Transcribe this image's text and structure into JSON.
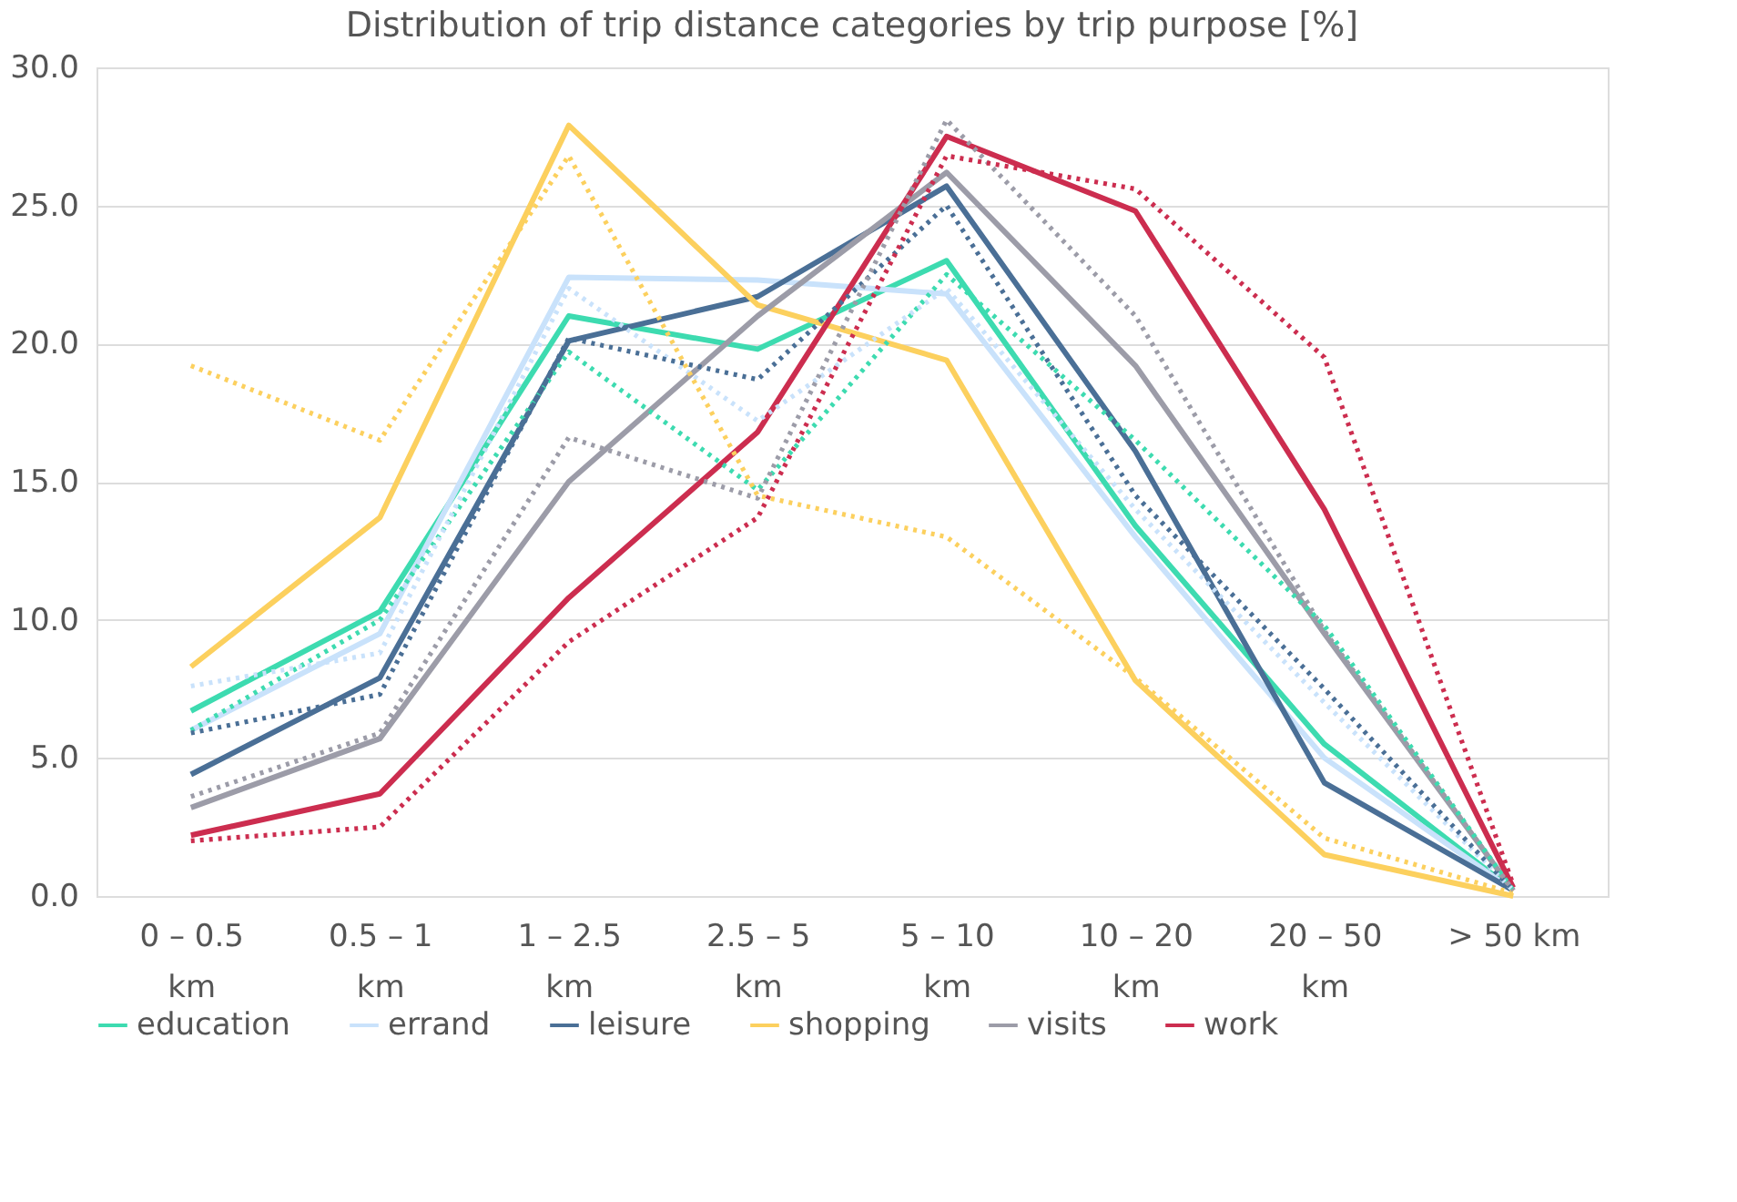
{
  "chart_data": {
    "type": "line",
    "title": "Distribution of trip distance categories by trip purpose [%]",
    "categories": [
      "0 – 0.5 km",
      "0.5 – 1 km",
      "1 – 2.5 km",
      "2.5 – 5 km",
      "5 – 10 km",
      "10 – 20 km",
      "20 – 50 km",
      "> 50 km"
    ],
    "ylim": [
      0,
      30
    ],
    "yticks": [
      {
        "value": 0,
        "label": "0.0"
      },
      {
        "value": 5,
        "label": "5.0"
      },
      {
        "value": 10,
        "label": "10.0"
      },
      {
        "value": 15,
        "label": "15.0"
      },
      {
        "value": 20,
        "label": "20.0"
      },
      {
        "value": 25,
        "label": "25.0"
      },
      {
        "value": 30,
        "label": "30.0"
      }
    ],
    "grid": "y",
    "legend": "bottom",
    "line_style": "solid",
    "marker": "none",
    "series": [
      {
        "name": "education",
        "color": "#3ddbb0",
        "values": [
          6.7,
          10.3,
          21.0,
          19.8,
          23.0,
          13.4,
          5.5,
          0.2
        ]
      },
      {
        "name": "errand",
        "color": "#c9e2fb",
        "values": [
          6.0,
          9.5,
          22.4,
          22.3,
          21.8,
          13.0,
          5.0,
          0.2
        ]
      },
      {
        "name": "leisure",
        "color": "#4a6f96",
        "values": [
          4.4,
          7.9,
          20.1,
          21.7,
          25.7,
          16.1,
          4.1,
          0.2
        ]
      },
      {
        "name": "shopping",
        "color": "#fcd05e",
        "values": [
          8.3,
          13.7,
          27.9,
          21.4,
          19.4,
          7.8,
          1.5,
          0.0
        ]
      },
      {
        "name": "visits",
        "color": "#9c9ca8",
        "values": [
          3.2,
          5.7,
          15.0,
          21.0,
          26.2,
          19.2,
          9.5,
          0.2
        ]
      },
      {
        "name": "work",
        "color": "#cc2d4f",
        "values": [
          2.2,
          3.7,
          10.8,
          16.8,
          27.5,
          24.8,
          14.0,
          0.3
        ]
      },
      {
        "color": "#3ddbb0",
        "line_style": "dotted",
        "values": [
          6.0,
          10.0,
          19.7,
          14.7,
          22.5,
          16.5,
          9.8,
          0.2
        ]
      },
      {
        "color": "#c9e2fb",
        "line_style": "dotted",
        "values": [
          7.6,
          8.8,
          22.0,
          17.2,
          22.0,
          14.0,
          7.0,
          0.2
        ]
      },
      {
        "color": "#4a6f96",
        "line_style": "dotted",
        "values": [
          5.9,
          7.3,
          20.2,
          18.7,
          25.0,
          14.5,
          7.5,
          0.2
        ]
      },
      {
        "color": "#fcd05e",
        "line_style": "dotted",
        "values": [
          19.2,
          16.5,
          26.8,
          14.5,
          13.0,
          7.9,
          2.1,
          0.1
        ]
      },
      {
        "color": "#9c9ca8",
        "line_style": "dotted",
        "values": [
          3.6,
          5.9,
          16.6,
          14.4,
          28.1,
          21.0,
          9.6,
          0.2
        ]
      },
      {
        "color": "#cc2d4f",
        "line_style": "dotted",
        "values": [
          2.0,
          2.5,
          9.2,
          13.7,
          26.8,
          25.6,
          19.5,
          0.4
        ]
      }
    ]
  }
}
